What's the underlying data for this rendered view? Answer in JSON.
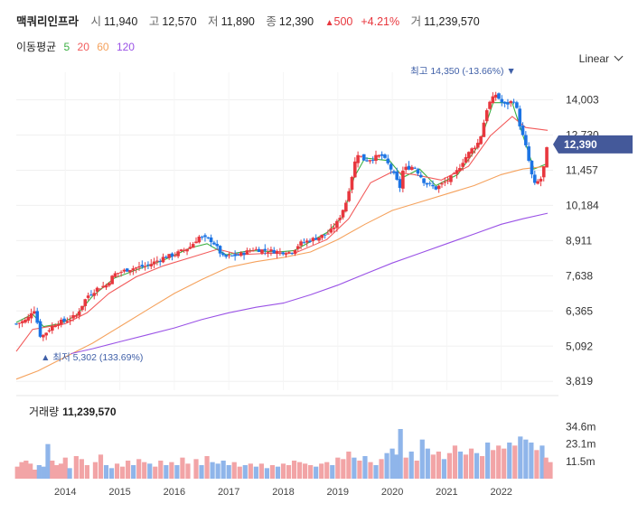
{
  "header": {
    "name": "맥쿼리인프라",
    "open_label": "시",
    "open": "11,940",
    "high_label": "고",
    "high": "12,570",
    "low_label": "저",
    "low": "11,890",
    "close_label": "종",
    "close": "12,390",
    "change": "500",
    "change_pct": "+4.21%",
    "volume_label": "거",
    "volume": "11,239,570"
  },
  "ma_legend": {
    "label": "이동평균",
    "items": [
      {
        "period": "5",
        "color": "#3cb043"
      },
      {
        "period": "20",
        "color": "#f25b5b"
      },
      {
        "period": "60",
        "color": "#f5a25d"
      },
      {
        "period": "120",
        "color": "#9a52e6"
      }
    ]
  },
  "scale_toggle": "Linear",
  "price_tag": "12,390",
  "volume_panel": {
    "label": "거래량",
    "value": "11,239,570"
  },
  "chart_data": {
    "type": "candlestick",
    "y_ticks": [
      "14,003",
      "12,730",
      "11,457",
      "10,184",
      "8,911",
      "7,638",
      "6,365",
      "5,092",
      "3,819"
    ],
    "y_tick_values": [
      14003,
      12730,
      11457,
      10184,
      8911,
      7638,
      6365,
      5092,
      3819
    ],
    "x_ticks": [
      "2014",
      "2015",
      "2016",
      "2017",
      "2018",
      "2019",
      "2020",
      "2021",
      "2022"
    ],
    "x_tick_values": [
      2014,
      2015,
      2016,
      2017,
      2018,
      2019,
      2020,
      2021,
      2022
    ],
    "x_range": [
      2013.1,
      2022.95
    ],
    "ylim": [
      3500,
      15000
    ],
    "max_marker": {
      "label": "최고",
      "value": "14,350",
      "pct": "(-13.66%)",
      "x": 2022.3,
      "y": 14350
    },
    "min_marker": {
      "label": "최저",
      "value": "5,302",
      "pct": "(133.69%)",
      "x": 2013.55,
      "y": 5302
    },
    "up_color": "#e8373e",
    "down_color": "#1c74e4",
    "close_path": [
      [
        2013.1,
        5900
      ],
      [
        2013.3,
        6050
      ],
      [
        2013.42,
        6500
      ],
      [
        2013.55,
        5400
      ],
      [
        2013.7,
        5700
      ],
      [
        2013.85,
        5950
      ],
      [
        2014.0,
        6000
      ],
      [
        2014.2,
        6200
      ],
      [
        2014.4,
        6900
      ],
      [
        2014.6,
        7200
      ],
      [
        2014.75,
        7300
      ],
      [
        2014.9,
        7700
      ],
      [
        2015.2,
        7900
      ],
      [
        2015.5,
        8000
      ],
      [
        2015.8,
        8300
      ],
      [
        2016.0,
        8400
      ],
      [
        2016.3,
        8700
      ],
      [
        2016.45,
        9050
      ],
      [
        2016.7,
        8900
      ],
      [
        2016.9,
        8300
      ],
      [
        2017.2,
        8400
      ],
      [
        2017.45,
        8600
      ],
      [
        2017.7,
        8550
      ],
      [
        2017.95,
        8500
      ],
      [
        2018.15,
        8500
      ],
      [
        2018.3,
        8800
      ],
      [
        2018.6,
        9000
      ],
      [
        2018.85,
        9200
      ],
      [
        2019.0,
        9600
      ],
      [
        2019.15,
        10300
      ],
      [
        2019.3,
        11600
      ],
      [
        2019.35,
        12100
      ],
      [
        2019.5,
        11800
      ],
      [
        2019.8,
        12000
      ],
      [
        2019.95,
        11600
      ],
      [
        2020.15,
        10800
      ],
      [
        2020.2,
        11500
      ],
      [
        2020.4,
        11600
      ],
      [
        2020.6,
        11000
      ],
      [
        2020.8,
        10800
      ],
      [
        2020.95,
        11000
      ],
      [
        2021.15,
        11300
      ],
      [
        2021.3,
        11800
      ],
      [
        2021.45,
        12200
      ],
      [
        2021.6,
        12500
      ],
      [
        2021.75,
        13800
      ],
      [
        2021.9,
        14200
      ],
      [
        2022.05,
        13800
      ],
      [
        2022.25,
        14000
      ],
      [
        2022.35,
        13000
      ],
      [
        2022.45,
        12300
      ],
      [
        2022.6,
        10900
      ],
      [
        2022.75,
        11200
      ],
      [
        2022.85,
        12390
      ]
    ],
    "series": [
      {
        "name": "5",
        "color": "#3cb043",
        "points": [
          [
            2013.1,
            5950
          ],
          [
            2013.4,
            6250
          ],
          [
            2013.6,
            5800
          ],
          [
            2013.9,
            5900
          ],
          [
            2014.2,
            6200
          ],
          [
            2014.5,
            6900
          ],
          [
            2014.9,
            7550
          ],
          [
            2015.3,
            7850
          ],
          [
            2015.8,
            8200
          ],
          [
            2016.3,
            8650
          ],
          [
            2016.6,
            8800
          ],
          [
            2016.95,
            8400
          ],
          [
            2017.4,
            8550
          ],
          [
            2017.9,
            8500
          ],
          [
            2018.2,
            8550
          ],
          [
            2018.8,
            9200
          ],
          [
            2019.1,
            9800
          ],
          [
            2019.3,
            11200
          ],
          [
            2019.5,
            11900
          ],
          [
            2019.95,
            11800
          ],
          [
            2020.2,
            11200
          ],
          [
            2020.5,
            11500
          ],
          [
            2020.8,
            10900
          ],
          [
            2021.2,
            11300
          ],
          [
            2021.6,
            12400
          ],
          [
            2021.85,
            13900
          ],
          [
            2022.2,
            13900
          ],
          [
            2022.4,
            12700
          ],
          [
            2022.6,
            11500
          ],
          [
            2022.85,
            11700
          ]
        ]
      },
      {
        "name": "20",
        "color": "#f25b5b",
        "points": [
          [
            2013.1,
            4900
          ],
          [
            2013.4,
            5700
          ],
          [
            2013.7,
            5800
          ],
          [
            2014.0,
            5900
          ],
          [
            2014.4,
            6300
          ],
          [
            2014.8,
            7000
          ],
          [
            2015.3,
            7600
          ],
          [
            2015.8,
            8000
          ],
          [
            2016.3,
            8300
          ],
          [
            2016.8,
            8600
          ],
          [
            2017.2,
            8400
          ],
          [
            2017.7,
            8450
          ],
          [
            2018.2,
            8450
          ],
          [
            2018.8,
            8950
          ],
          [
            2019.2,
            9700
          ],
          [
            2019.6,
            11000
          ],
          [
            2020.0,
            11400
          ],
          [
            2020.4,
            11300
          ],
          [
            2020.9,
            11100
          ],
          [
            2021.4,
            11600
          ],
          [
            2021.8,
            12700
          ],
          [
            2022.2,
            13400
          ],
          [
            2022.45,
            13000
          ],
          [
            2022.85,
            12900
          ]
        ]
      },
      {
        "name": "60",
        "color": "#f5a25d",
        "points": [
          [
            2013.1,
            3900
          ],
          [
            2013.5,
            4200
          ],
          [
            2014.0,
            4700
          ],
          [
            2014.5,
            5200
          ],
          [
            2015.0,
            5800
          ],
          [
            2015.5,
            6400
          ],
          [
            2016.0,
            7000
          ],
          [
            2016.5,
            7500
          ],
          [
            2017.0,
            7950
          ],
          [
            2017.5,
            8150
          ],
          [
            2018.0,
            8300
          ],
          [
            2018.5,
            8500
          ],
          [
            2019.0,
            8950
          ],
          [
            2019.5,
            9500
          ],
          [
            2020.0,
            10000
          ],
          [
            2020.5,
            10300
          ],
          [
            2021.0,
            10600
          ],
          [
            2021.5,
            10900
          ],
          [
            2022.0,
            11300
          ],
          [
            2022.4,
            11500
          ],
          [
            2022.85,
            11600
          ]
        ]
      },
      {
        "name": "120",
        "color": "#9a52e6",
        "points": [
          [
            2014.1,
            4820
          ],
          [
            2014.5,
            5000
          ],
          [
            2015.0,
            5250
          ],
          [
            2015.5,
            5500
          ],
          [
            2016.0,
            5750
          ],
          [
            2016.5,
            6050
          ],
          [
            2017.0,
            6300
          ],
          [
            2017.5,
            6500
          ],
          [
            2018.0,
            6650
          ],
          [
            2018.5,
            6950
          ],
          [
            2019.0,
            7300
          ],
          [
            2019.5,
            7700
          ],
          [
            2020.0,
            8100
          ],
          [
            2020.5,
            8450
          ],
          [
            2021.0,
            8800
          ],
          [
            2021.5,
            9150
          ],
          [
            2022.0,
            9500
          ],
          [
            2022.4,
            9700
          ],
          [
            2022.85,
            9900
          ]
        ]
      }
    ],
    "volume": {
      "ticks": [
        "34.6m",
        "23.1m",
        "11.5m"
      ],
      "tick_values": [
        34.6,
        23.1,
        11.5
      ],
      "max": 45,
      "bars": [
        [
          2013.12,
          8,
          1
        ],
        [
          2013.2,
          11,
          1
        ],
        [
          2013.28,
          12,
          1
        ],
        [
          2013.36,
          10,
          1
        ],
        [
          2013.44,
          6,
          1
        ],
        [
          2013.52,
          9,
          0
        ],
        [
          2013.6,
          8,
          0
        ],
        [
          2013.68,
          23,
          0
        ],
        [
          2013.76,
          12,
          1
        ],
        [
          2013.84,
          9,
          1
        ],
        [
          2013.92,
          10,
          1
        ],
        [
          2014.0,
          14,
          1
        ],
        [
          2014.08,
          7,
          0
        ],
        [
          2014.2,
          15,
          1
        ],
        [
          2014.3,
          13,
          1
        ],
        [
          2014.4,
          9,
          1
        ],
        [
          2014.55,
          11,
          1
        ],
        [
          2014.65,
          16,
          1
        ],
        [
          2014.75,
          9,
          0
        ],
        [
          2014.85,
          7,
          0
        ],
        [
          2014.95,
          10,
          1
        ],
        [
          2015.05,
          8,
          1
        ],
        [
          2015.15,
          12,
          1
        ],
        [
          2015.25,
          9,
          0
        ],
        [
          2015.35,
          13,
          1
        ],
        [
          2015.45,
          11,
          1
        ],
        [
          2015.55,
          10,
          0
        ],
        [
          2015.65,
          8,
          1
        ],
        [
          2015.75,
          12,
          1
        ],
        [
          2015.85,
          9,
          0
        ],
        [
          2015.95,
          11,
          1
        ],
        [
          2016.05,
          9,
          0
        ],
        [
          2016.15,
          14,
          1
        ],
        [
          2016.25,
          10,
          1
        ],
        [
          2016.4,
          13,
          1
        ],
        [
          2016.5,
          9,
          0
        ],
        [
          2016.6,
          15,
          1
        ],
        [
          2016.7,
          11,
          0
        ],
        [
          2016.8,
          10,
          0
        ],
        [
          2016.9,
          12,
          0
        ],
        [
          2017.0,
          9,
          0
        ],
        [
          2017.1,
          11,
          1
        ],
        [
          2017.2,
          8,
          1
        ],
        [
          2017.3,
          9,
          0
        ],
        [
          2017.4,
          10,
          1
        ],
        [
          2017.5,
          8,
          0
        ],
        [
          2017.6,
          10,
          1
        ],
        [
          2017.7,
          7,
          0
        ],
        [
          2017.8,
          9,
          1
        ],
        [
          2017.9,
          8,
          0
        ],
        [
          2018.0,
          10,
          1
        ],
        [
          2018.1,
          9,
          1
        ],
        [
          2018.2,
          12,
          1
        ],
        [
          2018.3,
          11,
          1
        ],
        [
          2018.4,
          10,
          1
        ],
        [
          2018.5,
          9,
          1
        ],
        [
          2018.6,
          8,
          0
        ],
        [
          2018.7,
          10,
          1
        ],
        [
          2018.8,
          11,
          1
        ],
        [
          2018.9,
          9,
          0
        ],
        [
          2019.0,
          14,
          1
        ],
        [
          2019.1,
          13,
          1
        ],
        [
          2019.2,
          18,
          1
        ],
        [
          2019.3,
          14,
          0
        ],
        [
          2019.4,
          12,
          1
        ],
        [
          2019.5,
          15,
          0
        ],
        [
          2019.6,
          11,
          1
        ],
        [
          2019.7,
          9,
          0
        ],
        [
          2019.8,
          13,
          1
        ],
        [
          2019.9,
          17,
          0
        ],
        [
          2020.0,
          20,
          0
        ],
        [
          2020.08,
          16,
          0
        ],
        [
          2020.15,
          33,
          0
        ],
        [
          2020.25,
          14,
          1
        ],
        [
          2020.35,
          18,
          0
        ],
        [
          2020.45,
          12,
          1
        ],
        [
          2020.55,
          26,
          0
        ],
        [
          2020.65,
          20,
          0
        ],
        [
          2020.75,
          16,
          1
        ],
        [
          2020.85,
          18,
          1
        ],
        [
          2020.95,
          13,
          0
        ],
        [
          2021.05,
          17,
          1
        ],
        [
          2021.15,
          22,
          1
        ],
        [
          2021.25,
          18,
          0
        ],
        [
          2021.35,
          16,
          1
        ],
        [
          2021.45,
          20,
          1
        ],
        [
          2021.55,
          17,
          0
        ],
        [
          2021.65,
          15,
          1
        ],
        [
          2021.75,
          24,
          0
        ],
        [
          2021.85,
          19,
          1
        ],
        [
          2021.95,
          22,
          1
        ],
        [
          2022.05,
          20,
          1
        ],
        [
          2022.15,
          24,
          0
        ],
        [
          2022.25,
          22,
          1
        ],
        [
          2022.35,
          28,
          0
        ],
        [
          2022.45,
          26,
          0
        ],
        [
          2022.55,
          24,
          0
        ],
        [
          2022.65,
          19,
          1
        ],
        [
          2022.75,
          22,
          0
        ],
        [
          2022.82,
          14,
          1
        ],
        [
          2022.9,
          11,
          1
        ]
      ]
    }
  }
}
